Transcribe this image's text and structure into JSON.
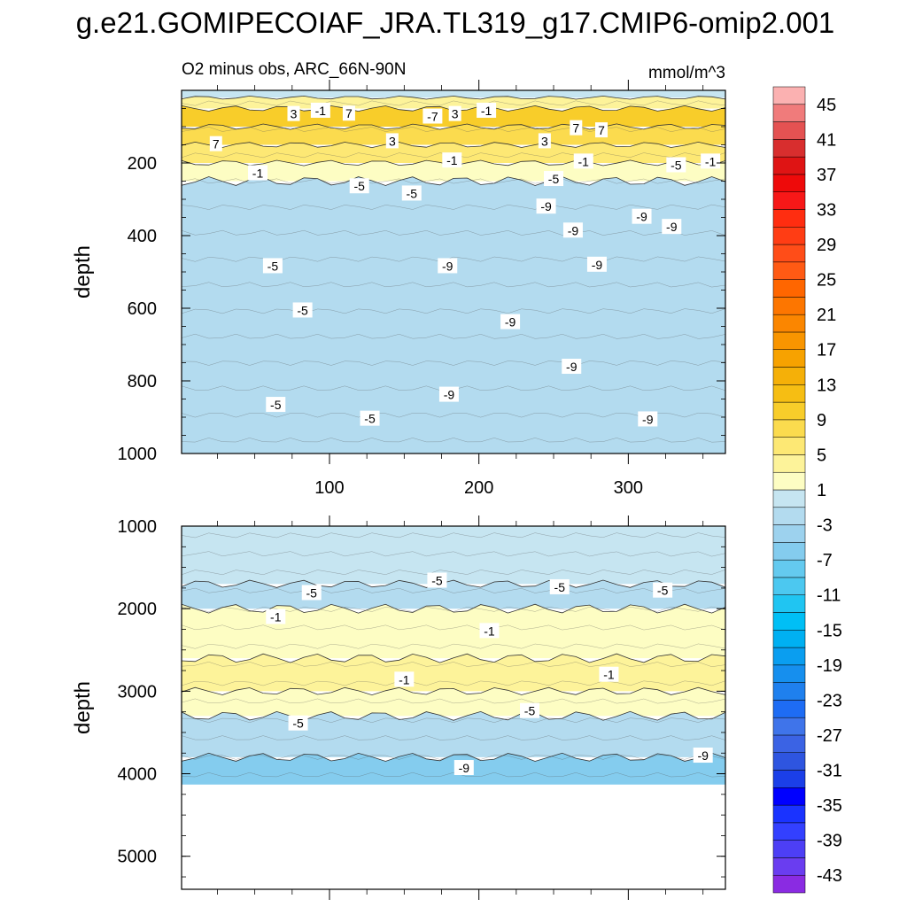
{
  "title": "g.e21.GOMIPECOIAF_JRA.TL319_g17.CMIP6-omip2.001",
  "chart_data": [
    {
      "type": "contour",
      "panel": "upper",
      "subtitle_left": "O2 minus obs, ARC_66N-90N",
      "subtitle_right": "mmol/m^3",
      "ylabel": "depth",
      "xlabel": "",
      "xlim": [
        1,
        365
      ],
      "ylim": [
        0,
        1000
      ],
      "y_inverted": true,
      "xticks": [
        100,
        200,
        300
      ],
      "xtick_labels": [
        "100",
        "200",
        "300"
      ],
      "yticks": [
        200,
        400,
        600,
        800,
        1000
      ],
      "ytick_labels": [
        "200",
        "400",
        "600",
        "800",
        "1000"
      ],
      "bands": [
        {
          "depth": 0,
          "value": -3
        },
        {
          "depth": 20,
          "value": 2
        },
        {
          "depth": 50,
          "value": 8
        },
        {
          "depth": 100,
          "value": 6
        },
        {
          "depth": 150,
          "value": 3
        },
        {
          "depth": 200,
          "value": -1
        },
        {
          "depth": 250,
          "value": -5
        },
        {
          "depth": 1000,
          "value": -6
        }
      ],
      "contour_labels": [
        {
          "x": 76,
          "y": 65,
          "label": "3"
        },
        {
          "x": 94,
          "y": 56,
          "label": "-1"
        },
        {
          "x": 113,
          "y": 64,
          "label": "7"
        },
        {
          "x": 169,
          "y": 72,
          "label": "-7"
        },
        {
          "x": 184,
          "y": 65,
          "label": "3"
        },
        {
          "x": 205,
          "y": 56,
          "label": "-1"
        },
        {
          "x": 265,
          "y": 104,
          "label": "7"
        },
        {
          "x": 282,
          "y": 110,
          "label": "7"
        },
        {
          "x": 142,
          "y": 140,
          "label": "3"
        },
        {
          "x": 244,
          "y": 140,
          "label": "3"
        },
        {
          "x": 24,
          "y": 148,
          "label": "7"
        },
        {
          "x": 182,
          "y": 193,
          "label": "-1"
        },
        {
          "x": 270,
          "y": 196,
          "label": "-1"
        },
        {
          "x": 332,
          "y": 206,
          "label": "-5"
        },
        {
          "x": 355,
          "y": 196,
          "label": "-1"
        },
        {
          "x": 52,
          "y": 228,
          "label": "-1"
        },
        {
          "x": 120,
          "y": 264,
          "label": "-5"
        },
        {
          "x": 155,
          "y": 284,
          "label": "-5"
        },
        {
          "x": 250,
          "y": 244,
          "label": "-5"
        },
        {
          "x": 245,
          "y": 320,
          "label": "-9"
        },
        {
          "x": 309,
          "y": 348,
          "label": "-9"
        },
        {
          "x": 329,
          "y": 376,
          "label": "-9"
        },
        {
          "x": 263,
          "y": 386,
          "label": "-9"
        },
        {
          "x": 179,
          "y": 484,
          "label": "-9"
        },
        {
          "x": 279,
          "y": 480,
          "label": "-9"
        },
        {
          "x": 62,
          "y": 484,
          "label": "-5"
        },
        {
          "x": 82,
          "y": 606,
          "label": "-5"
        },
        {
          "x": 221,
          "y": 638,
          "label": "-9"
        },
        {
          "x": 262,
          "y": 761,
          "label": "-9"
        },
        {
          "x": 180,
          "y": 838,
          "label": "-9"
        },
        {
          "x": 64,
          "y": 866,
          "label": "-5"
        },
        {
          "x": 127,
          "y": 904,
          "label": "-5"
        },
        {
          "x": 313,
          "y": 906,
          "label": "-9"
        }
      ]
    },
    {
      "type": "contour",
      "panel": "lower",
      "ylabel": "depth",
      "xlabel": "",
      "xlim": [
        1,
        365
      ],
      "ylim": [
        1000,
        5400
      ],
      "y_inverted": true,
      "data_bottom_depth": 4130,
      "yticks": [
        1000,
        2000,
        3000,
        4000,
        5000
      ],
      "ytick_labels": [
        "1000",
        "2000",
        "3000",
        "4000",
        "5000"
      ],
      "bands": [
        {
          "depth": 1000,
          "value": -3
        },
        {
          "depth": 1700,
          "value": -5
        },
        {
          "depth": 2000,
          "value": -1
        },
        {
          "depth": 2600,
          "value": 1
        },
        {
          "depth": 3000,
          "value": -1
        },
        {
          "depth": 3300,
          "value": -5
        },
        {
          "depth": 3800,
          "value": -8
        },
        {
          "depth": 4130,
          "value": -10
        }
      ],
      "contour_labels": [
        {
          "x": 88,
          "y": 1810,
          "label": "-5"
        },
        {
          "x": 172,
          "y": 1660,
          "label": "-5"
        },
        {
          "x": 254,
          "y": 1740,
          "label": "-5"
        },
        {
          "x": 323,
          "y": 1780,
          "label": "-5"
        },
        {
          "x": 64,
          "y": 2100,
          "label": "-1"
        },
        {
          "x": 207,
          "y": 2270,
          "label": "-1"
        },
        {
          "x": 150,
          "y": 2860,
          "label": "-1"
        },
        {
          "x": 287,
          "y": 2800,
          "label": "-1"
        },
        {
          "x": 79,
          "y": 3390,
          "label": "-5"
        },
        {
          "x": 234,
          "y": 3240,
          "label": "-5"
        },
        {
          "x": 190,
          "y": 3930,
          "label": "-9"
        },
        {
          "x": 350,
          "y": 3780,
          "label": "-9"
        }
      ]
    },
    {
      "type": "colorbar",
      "levels": [
        -45,
        -43,
        -41,
        -39,
        -37,
        -35,
        -33,
        -31,
        -29,
        -27,
        -25,
        -23,
        -21,
        -19,
        -17,
        -15,
        -13,
        -11,
        -9,
        -7,
        -5,
        -3,
        -1,
        1,
        3,
        5,
        7,
        9,
        11,
        13,
        15,
        17,
        19,
        21,
        23,
        25,
        27,
        29,
        31,
        33,
        35,
        37,
        39,
        41,
        43,
        45
      ],
      "tick_labels": [
        "45",
        "41",
        "37",
        "33",
        "29",
        "25",
        "21",
        "17",
        "13",
        "9",
        "5",
        "1",
        "-3",
        "-7",
        "-11",
        "-15",
        "-19",
        "-23",
        "-27",
        "-31",
        "-35",
        "-39",
        "-43"
      ],
      "colors_low_to_high": [
        "#8a2be2",
        "#6a3df0",
        "#4d3ff5",
        "#3340ff",
        "#1a33ff",
        "#0000ff",
        "#1b3fe8",
        "#2e55e0",
        "#3b63e4",
        "#3f74ea",
        "#1e6cf4",
        "#1f80ee",
        "#168fee",
        "#0a9ef0",
        "#00b0f2",
        "#00bff5",
        "#20c5f2",
        "#4cc8f0",
        "#64caef",
        "#84ccee",
        "#9dd2ee",
        "#b3dbef",
        "#c6e5f1",
        "#fdfdc3",
        "#fdf39a",
        "#fde874",
        "#fbdb4e",
        "#f8cd2a",
        "#f6be13",
        "#f5b008",
        "#f7a200",
        "#f99500",
        "#fb8600",
        "#fd7600",
        "#ff6600",
        "#ff5a14",
        "#ff4d18",
        "#ff3d14",
        "#ff2d10",
        "#f71818",
        "#ee0a0a",
        "#df1414",
        "#d82e2e",
        "#e45252",
        "#f07b7b",
        "#fbb1b1"
      ]
    }
  ]
}
